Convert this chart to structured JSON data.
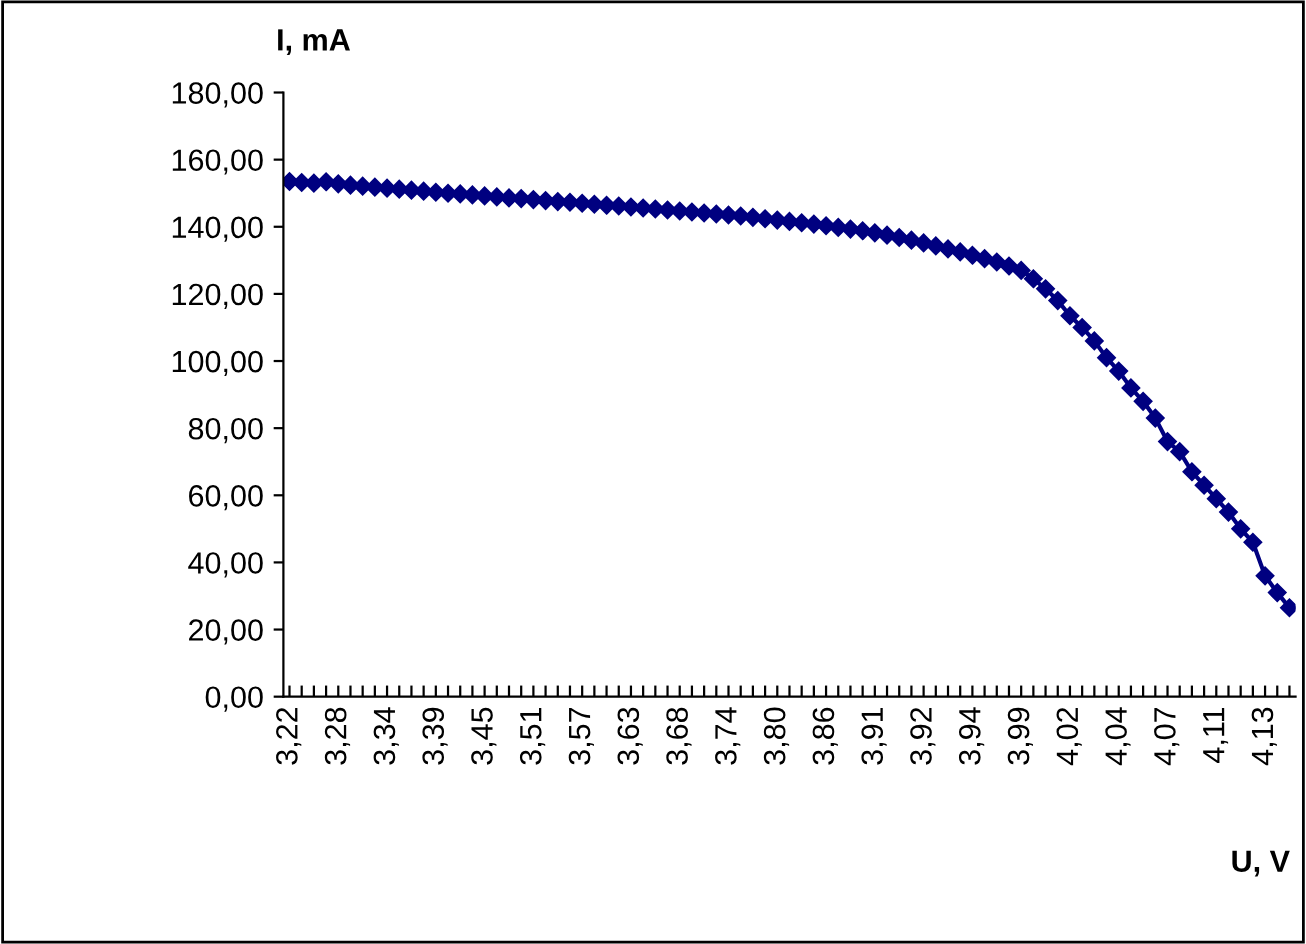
{
  "chart_data": {
    "type": "line",
    "xlabel": "U, V",
    "ylabel": "I, mA",
    "categories": [
      "3,22",
      null,
      null,
      null,
      "3,28",
      null,
      null,
      null,
      "3,34",
      null,
      null,
      null,
      "3,39",
      null,
      null,
      null,
      "3,45",
      null,
      null,
      null,
      "3,51",
      null,
      null,
      null,
      "3,57",
      null,
      null,
      null,
      "3,63",
      null,
      null,
      null,
      "3,68",
      null,
      null,
      null,
      "3,74",
      null,
      null,
      null,
      "3,80",
      null,
      null,
      null,
      "3,86",
      null,
      null,
      null,
      "3,91",
      null,
      null,
      null,
      "3,92",
      null,
      null,
      null,
      "3,94",
      null,
      null,
      null,
      "3,99",
      null,
      null,
      null,
      "4,02",
      null,
      null,
      null,
      "4,04",
      null,
      null,
      null,
      "4,07",
      null,
      null,
      null,
      "4,11",
      null,
      null,
      null,
      "4,13",
      null,
      null
    ],
    "series": [
      {
        "color": "#000080",
        "values": [
          153.5,
          153.2,
          153.0,
          153.4,
          152.8,
          152.4,
          152.1,
          151.8,
          151.5,
          151.2,
          150.9,
          150.6,
          150.3,
          150.0,
          149.8,
          149.5,
          149.2,
          148.9,
          148.6,
          148.4,
          148.1,
          147.8,
          147.5,
          147.3,
          147.0,
          146.7,
          146.4,
          146.2,
          145.9,
          145.6,
          145.3,
          145.0,
          144.7,
          144.4,
          144.1,
          143.8,
          143.5,
          143.2,
          142.8,
          142.4,
          142.0,
          141.6,
          141.2,
          140.8,
          140.3,
          139.8,
          139.3,
          138.8,
          138.2,
          137.5,
          136.8,
          136.0,
          135.2,
          134.3,
          133.4,
          132.5,
          131.5,
          130.5,
          129.5,
          128.3,
          127.0,
          124.5,
          121.5,
          118.0,
          113.5,
          110.0,
          106.0,
          101.0,
          97.0,
          92.0,
          88.0,
          83.0,
          76.0,
          73.0,
          67.0,
          63.0,
          59.0,
          55.0,
          50.0,
          46.0,
          36.0,
          31.0,
          26.5
        ]
      }
    ],
    "ylim": [
      0,
      180
    ],
    "yticks": [
      {
        "value": 0,
        "label": "0,00"
      },
      {
        "value": 20,
        "label": "20,00"
      },
      {
        "value": 40,
        "label": "40,00"
      },
      {
        "value": 60,
        "label": "60,00"
      },
      {
        "value": 80,
        "label": "80,00"
      },
      {
        "value": 100,
        "label": "100,00"
      },
      {
        "value": 120,
        "label": "120,00"
      },
      {
        "value": 140,
        "label": "140,00"
      },
      {
        "value": 160,
        "label": "160,00"
      },
      {
        "value": 180,
        "label": "180,00"
      }
    ],
    "grid": false,
    "legend": false,
    "marker": "diamond",
    "line_style": "solid"
  }
}
